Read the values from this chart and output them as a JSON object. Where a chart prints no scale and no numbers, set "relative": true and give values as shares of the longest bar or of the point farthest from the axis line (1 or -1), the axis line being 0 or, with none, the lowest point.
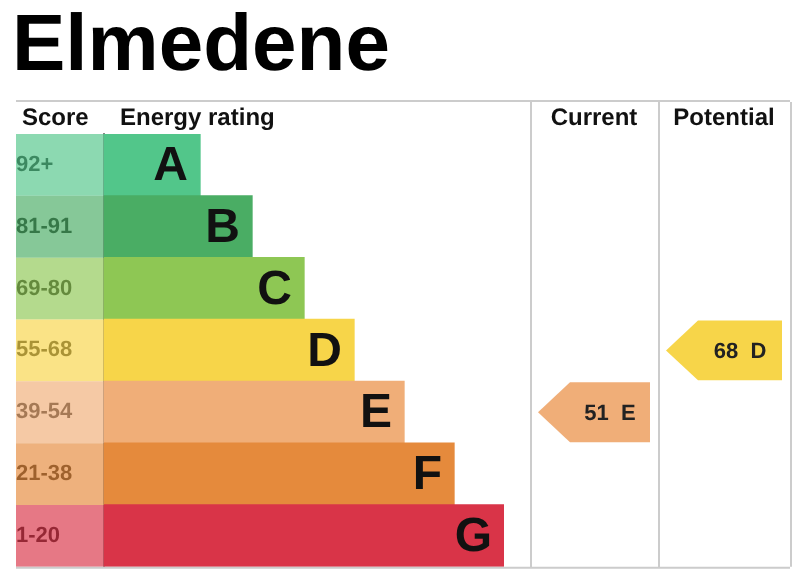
{
  "chart_data": {
    "type": "bar",
    "orientation": "horizontal",
    "relative": true,
    "title": "Elmedene",
    "ylabel": "Score",
    "xlabel": "Energy rating",
    "categories": [
      "92+",
      "81-91",
      "69-80",
      "55-68",
      "39-54",
      "21-38",
      "1-20"
    ],
    "values": [
      0.24,
      0.37,
      0.5,
      0.625,
      0.75,
      0.875,
      1
    ],
    "colors": [
      "#52c68a",
      "#4aad64",
      "#8ec754",
      "#f7d549",
      "#f0ae78",
      "#e58a3c",
      "#d93448"
    ],
    "annotations": [
      {
        "text": "A",
        "x": 0.24,
        "y": "92+"
      },
      {
        "text": "B",
        "x": 0.37,
        "y": "81-91"
      },
      {
        "text": "C",
        "x": 0.5,
        "y": "69-80"
      },
      {
        "text": "D",
        "x": 0.625,
        "y": "55-68"
      },
      {
        "text": "E",
        "x": 0.75,
        "y": "39-54"
      },
      {
        "text": "F",
        "x": 0.875,
        "y": "21-38"
      },
      {
        "text": "G",
        "x": 1,
        "y": "1-20"
      },
      "Current",
      "Potential",
      "51 E",
      "68 D"
    ],
    "legend": false,
    "grid": false
  }
}
